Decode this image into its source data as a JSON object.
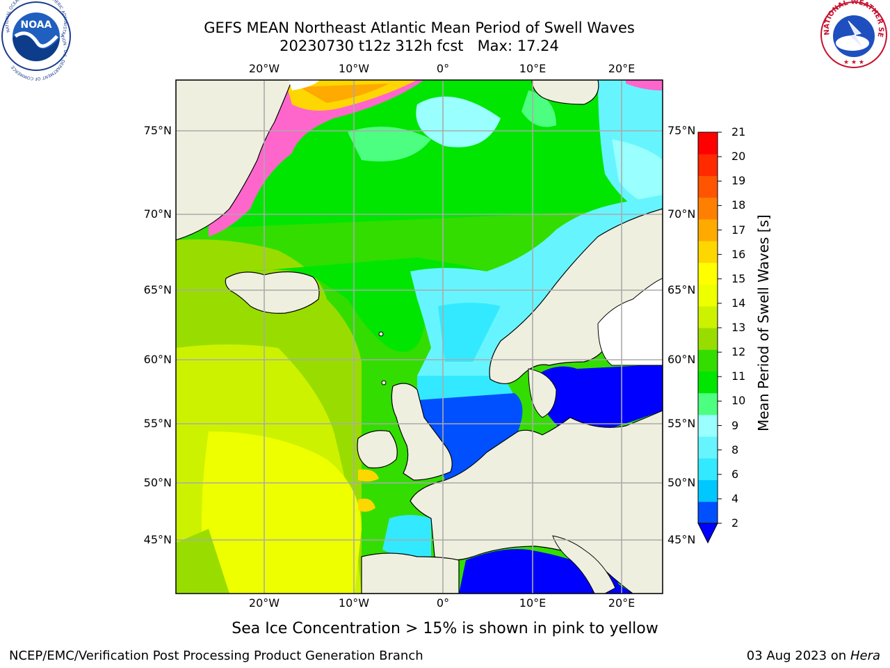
{
  "title_line1": "GEFS MEAN Northeast Atlantic Mean Period of Swell Waves",
  "title_line2": "20230730 t12z 312h fcst   Max: 17.24",
  "logos": {
    "noaa_text": "NOAA",
    "noaa_ring_text": "NATIONAL OCEANIC AND ATMOSPHERIC ADMINISTRATION · U.S. DEPARTMENT OF COMMERCE",
    "nws_ring_text": "NATIONAL WEATHER SERVICE"
  },
  "lon_ticks": [
    "20°W",
    "10°W",
    "0°",
    "10°E",
    "20°E"
  ],
  "lat_ticks": [
    "75°N",
    "70°N",
    "65°N",
    "60°N",
    "55°N",
    "50°N",
    "45°N"
  ],
  "colorbar": {
    "label": "Mean Period of Swell Waves [s]",
    "ticks": [
      "2",
      "4",
      "6",
      "8",
      "9",
      "10",
      "11",
      "12",
      "13",
      "14",
      "15",
      "16",
      "17",
      "18",
      "19",
      "20",
      "21"
    ],
    "colors": [
      "#0050ff",
      "#00c8ff",
      "#33e9ff",
      "#66f5ff",
      "#99ffff",
      "#4dff80",
      "#00e600",
      "#33dd00",
      "#99dd00",
      "#ccf200",
      "#eeff00",
      "#ffff00",
      "#ffd700",
      "#ffaa00",
      "#ff8000",
      "#ff5500",
      "#ff2a00",
      "#ff0000"
    ],
    "under_color": "#0000ff"
  },
  "note": "Sea Ice Concentration > 15% is shown in pink to yellow",
  "footer_left": "NCEP/EMC/Verification Post Processing Product Generation Branch",
  "footer_date": "03 Aug 2023 on",
  "footer_host": "Hera"
}
